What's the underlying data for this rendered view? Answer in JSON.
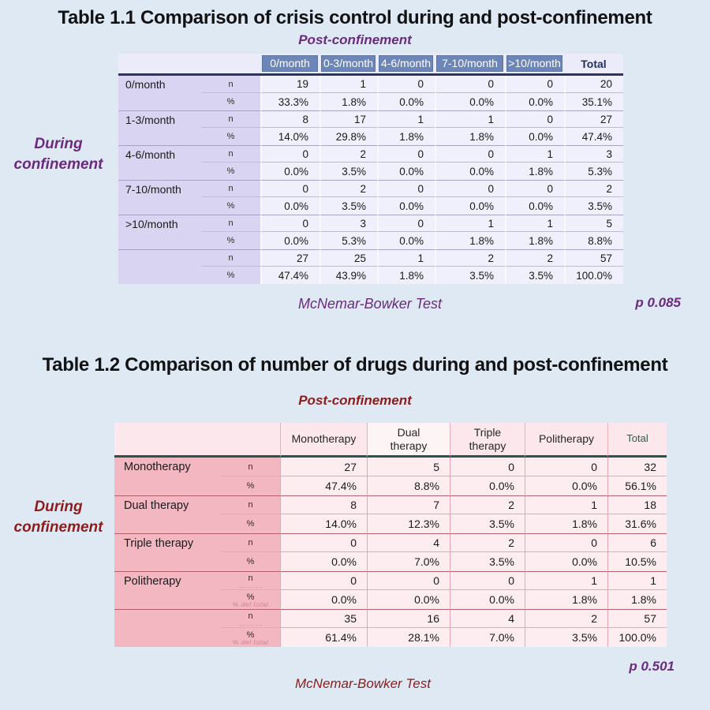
{
  "page": {
    "background": "#dee9f4"
  },
  "table1": {
    "title": "Table 1.1 Comparison of crisis control during and post-confinement",
    "top_axis_label": "Post-confinement",
    "side_axis_label": "During confinement",
    "col_headers": [
      "0/month",
      "0-3/month",
      "4-6/month",
      "7-10/month",
      ">10/month"
    ],
    "total_header": "Total",
    "sub_labels": {
      "n": "n",
      "pct": "%"
    },
    "row_groups": [
      {
        "label": "0/month",
        "n": [
          "19",
          "1",
          "0",
          "0",
          "0",
          "20"
        ],
        "pct": [
          "33.3%",
          "1.8%",
          "0.0%",
          "0.0%",
          "0.0%",
          "35.1%"
        ]
      },
      {
        "label": "1-3/month",
        "n": [
          "8",
          "17",
          "1",
          "1",
          "0",
          "27"
        ],
        "pct": [
          "14.0%",
          "29.8%",
          "1.8%",
          "1.8%",
          "0.0%",
          "47.4%"
        ]
      },
      {
        "label": "4-6/month",
        "n": [
          "0",
          "2",
          "0",
          "0",
          "1",
          "3"
        ],
        "pct": [
          "0.0%",
          "3.5%",
          "0.0%",
          "0.0%",
          "1.8%",
          "5.3%"
        ]
      },
      {
        "label": "7-10/month",
        "n": [
          "0",
          "2",
          "0",
          "0",
          "0",
          "2"
        ],
        "pct": [
          "0.0%",
          "3.5%",
          "0.0%",
          "0.0%",
          "0.0%",
          "3.5%"
        ]
      },
      {
        "label": ">10/month",
        "n": [
          "0",
          "3",
          "0",
          "1",
          "1",
          "5"
        ],
        "pct": [
          "0.0%",
          "5.3%",
          "0.0%",
          "1.8%",
          "1.8%",
          "8.8%"
        ]
      },
      {
        "label": "",
        "n": [
          "27",
          "25",
          "1",
          "2",
          "2",
          "57"
        ],
        "pct": [
          "47.4%",
          "43.9%",
          "1.8%",
          "3.5%",
          "3.5%",
          "100.0%"
        ]
      }
    ],
    "test_label": "McNemar-Bowker Test",
    "p_value": "p 0.085",
    "accent_color": "#6b2a80",
    "header_chip_color": "#6d86b8",
    "header_underline_color": "#2b3462"
  },
  "table2": {
    "title": "Table 1.2 Comparison of number of drugs during and post-confinement",
    "top_axis_label": "Post-confinement",
    "side_axis_label": "During confinement",
    "col_headers": [
      "Monotherapy",
      "Dual\ntherapy",
      "Triple\ntherapy",
      "Politherapy"
    ],
    "total_header": "Total",
    "sub_labels": {
      "n": "n",
      "pct": "%"
    },
    "row_groups": [
      {
        "label": "Monotherapy",
        "n": [
          "27",
          "5",
          "0",
          "0",
          "32"
        ],
        "pct": [
          "47.4%",
          "8.8%",
          "0.0%",
          "0.0%",
          "56.1%"
        ]
      },
      {
        "label": "Dual therapy",
        "n": [
          "8",
          "7",
          "2",
          "1",
          "18"
        ],
        "pct": [
          "14.0%",
          "12.3%",
          "3.5%",
          "1.8%",
          "31.6%"
        ]
      },
      {
        "label": "Triple therapy",
        "n": [
          "0",
          "4",
          "2",
          "0",
          "6"
        ],
        "pct": [
          "0.0%",
          "7.0%",
          "3.5%",
          "0.0%",
          "10.5%"
        ]
      },
      {
        "label": "Politherapy",
        "n": [
          "0",
          "0",
          "0",
          "1",
          "1"
        ],
        "pct": [
          "0.0%",
          "0.0%",
          "0.0%",
          "1.8%",
          "1.8%"
        ],
        "ghost_n": "...........",
        "ghost_pct": "% del total"
      },
      {
        "label": "",
        "n": [
          "35",
          "16",
          "4",
          "2",
          "57"
        ],
        "pct": [
          "61.4%",
          "28.1%",
          "7.0%",
          "3.5%",
          "100.0%"
        ],
        "ghost_n": "...........",
        "ghost_pct": "% del total"
      }
    ],
    "test_label": "McNemar-Bowker Test",
    "p_value": "p 0.501",
    "accent_color": "#8c1d1d",
    "p_value_color": "#6b2a80",
    "total_header_color": "#2e594e",
    "header_underline_color": "#2a544b"
  }
}
